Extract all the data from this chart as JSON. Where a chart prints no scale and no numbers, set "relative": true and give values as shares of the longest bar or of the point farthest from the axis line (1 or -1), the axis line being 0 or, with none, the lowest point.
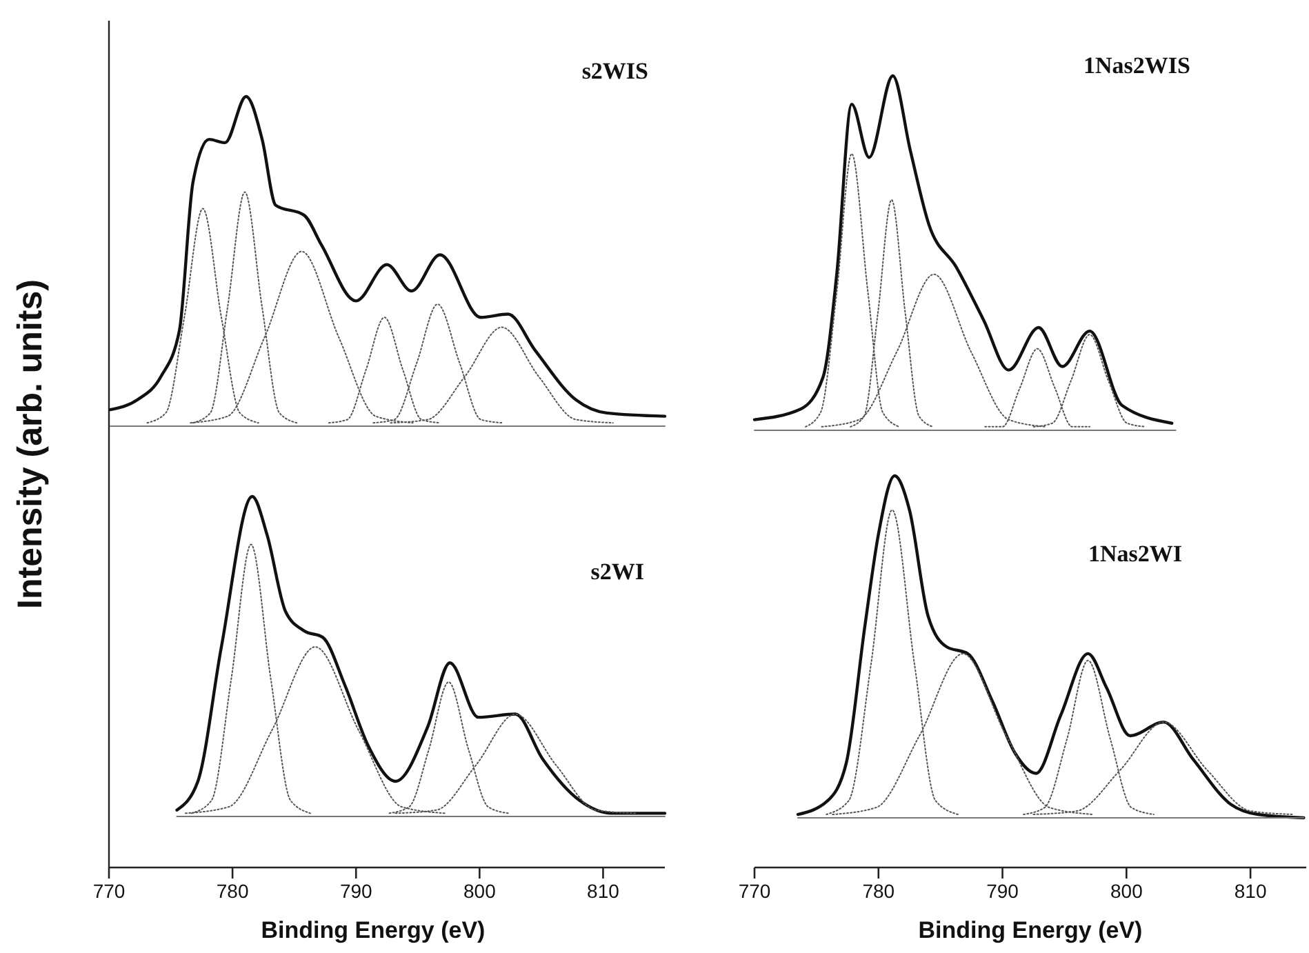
{
  "chart_data": [
    {
      "type": "line",
      "title": "s2WIS",
      "ylabel": "Intensity (arb. units)",
      "relative": true,
      "xlim": [
        770,
        815
      ],
      "tick_labels": false,
      "series": [
        {
          "color": "#111111",
          "line_style": "solid",
          "x": [
            770.1,
            772.3,
            774.2,
            775.7,
            776.8,
            778.1,
            779.4,
            781.1,
            782.4,
            783.5,
            785.8,
            787.2,
            790.0,
            792.5,
            794.5,
            796.8,
            800.1,
            802.3,
            804.5,
            807.8,
            810.3,
            815
          ],
          "values": [
            0.05,
            0.08,
            0.15,
            0.29,
            0.74,
            0.87,
            0.86,
            1.0,
            0.87,
            0.67,
            0.64,
            0.55,
            0.38,
            0.49,
            0.41,
            0.52,
            0.33,
            0.34,
            0.23,
            0.08,
            0.04,
            0.03
          ]
        },
        {
          "color": "#555555",
          "line_style": "dotted",
          "x": [
            773.1,
            774.6,
            776.1,
            777.6,
            779.1,
            780.6,
            782.1
          ],
          "values": [
            0.01,
            0.04,
            0.33,
            0.66,
            0.33,
            0.04,
            0.01
          ]
        },
        {
          "color": "#555555",
          "line_style": "dotted",
          "x": [
            776.8,
            778.2,
            779.6,
            781.0,
            782.4,
            783.8,
            785.2
          ],
          "values": [
            0.01,
            0.04,
            0.36,
            0.71,
            0.36,
            0.04,
            0.01
          ]
        },
        {
          "color": "#555555",
          "line_style": "dotted",
          "x": [
            776.6,
            779.6,
            782.6,
            785.6,
            788.6,
            791.6,
            794.6
          ],
          "values": [
            0.01,
            0.03,
            0.27,
            0.53,
            0.27,
            0.03,
            0.01
          ]
        },
        {
          "color": "#555555",
          "line_style": "dotted",
          "x": [
            787.8,
            789.3,
            790.8,
            792.3,
            793.8,
            795.3,
            796.8
          ],
          "values": [
            0.01,
            0.02,
            0.17,
            0.33,
            0.17,
            0.02,
            0.01
          ]
        },
        {
          "color": "#555555",
          "line_style": "dotted",
          "x": [
            791.4,
            793.1,
            794.9,
            796.6,
            798.4,
            800.1,
            801.9
          ],
          "values": [
            0.01,
            0.02,
            0.19,
            0.37,
            0.19,
            0.02,
            0.01
          ]
        },
        {
          "color": "#555555",
          "line_style": "dotted",
          "x": [
            792.8,
            795.8,
            798.8,
            801.8,
            804.8,
            807.8,
            810.8
          ],
          "values": [
            0.01,
            0.02,
            0.15,
            0.3,
            0.15,
            0.02,
            0.01
          ]
        },
        {
          "color": "#777777",
          "line_style": "solid",
          "x": [
            770.1,
            815
          ],
          "values": [
            0,
            0
          ]
        }
      ]
    },
    {
      "type": "line",
      "title": "1Nas2WIS",
      "relative": true,
      "xlim": [
        770,
        814.5
      ],
      "tick_labels": false,
      "series": [
        {
          "color": "#111111",
          "line_style": "solid",
          "x": [
            770.0,
            773.7,
            775.5,
            776.6,
            777.8,
            779.2,
            781.1,
            782.5,
            784.0,
            786.2,
            788.4,
            790.4,
            792.8,
            794.7,
            796.9,
            799.5,
            803.5
          ],
          "values": [
            0.03,
            0.06,
            0.15,
            0.44,
            0.92,
            0.77,
            1.0,
            0.79,
            0.58,
            0.46,
            0.31,
            0.17,
            0.29,
            0.18,
            0.28,
            0.07,
            0.02
          ]
        },
        {
          "color": "#555555",
          "line_style": "dotted",
          "x": [
            774.1,
            775.3,
            776.6,
            777.8,
            779.1,
            780.3,
            781.6
          ],
          "values": [
            0.01,
            0.05,
            0.39,
            0.78,
            0.39,
            0.05,
            0.01
          ]
        },
        {
          "color": "#555555",
          "line_style": "dotted",
          "x": [
            777.7,
            778.8,
            779.9,
            781.0,
            782.1,
            783.2,
            784.3
          ],
          "values": [
            0.01,
            0.04,
            0.33,
            0.65,
            0.33,
            0.04,
            0.01
          ]
        },
        {
          "color": "#555555",
          "line_style": "dotted",
          "x": [
            775.4,
            778.4,
            781.4,
            784.4,
            787.4,
            790.4,
            793.4
          ],
          "values": [
            0.01,
            0.03,
            0.22,
            0.44,
            0.22,
            0.03,
            0.01
          ]
        },
        {
          "color": "#555555",
          "line_style": "dotted",
          "x": [
            788.5,
            789.9,
            791.3,
            792.7,
            794.1,
            795.5,
            796.9
          ],
          "values": [
            0.01,
            0.01,
            0.12,
            0.23,
            0.12,
            0.01,
            0.01
          ]
        },
        {
          "color": "#555555",
          "line_style": "dotted",
          "x": [
            792.4,
            793.9,
            795.4,
            796.9,
            798.4,
            799.9,
            801.4
          ],
          "values": [
            0.01,
            0.02,
            0.14,
            0.27,
            0.14,
            0.02,
            0.01
          ]
        },
        {
          "color": "#777777",
          "line_style": "solid",
          "x": [
            770.0,
            803.8
          ],
          "values": [
            0,
            0
          ]
        }
      ]
    },
    {
      "type": "line",
      "title": "s2WI",
      "xlabel": "Binding Energy (eV)",
      "relative": true,
      "xlim": [
        770,
        815
      ],
      "xticks": [
        770,
        780,
        790,
        800,
        810
      ],
      "tick_labels": "x",
      "series": [
        {
          "color": "#111111",
          "line_style": "solid",
          "x": [
            775.5,
            777.2,
            779.1,
            781.6,
            782.8,
            784.3,
            785.8,
            787.3,
            789.1,
            791.0,
            793.2,
            795.8,
            797.6,
            799.9,
            802.9,
            805.1,
            808.1,
            810.7,
            815
          ],
          "values": [
            0.02,
            0.11,
            0.53,
            1.0,
            0.88,
            0.64,
            0.58,
            0.56,
            0.41,
            0.22,
            0.11,
            0.28,
            0.48,
            0.31,
            0.32,
            0.18,
            0.05,
            0.01,
            0.01
          ]
        },
        {
          "color": "#555555",
          "line_style": "dotted",
          "x": [
            776.7,
            778.3,
            779.9,
            781.5,
            783.1,
            784.7,
            786.3
          ],
          "values": [
            0.01,
            0.05,
            0.43,
            0.85,
            0.43,
            0.05,
            0.01
          ]
        },
        {
          "color": "#555555",
          "line_style": "dotted",
          "x": [
            776.2,
            779.7,
            783.2,
            786.7,
            790.2,
            793.7,
            797.2
          ],
          "values": [
            0.01,
            0.03,
            0.27,
            0.53,
            0.27,
            0.03,
            0.01
          ]
        },
        {
          "color": "#555555",
          "line_style": "dotted",
          "x": [
            792.7,
            794.3,
            795.9,
            797.5,
            799.1,
            800.7,
            802.3
          ],
          "values": [
            0.01,
            0.03,
            0.21,
            0.42,
            0.21,
            0.03,
            0.01
          ]
        },
        {
          "color": "#555555",
          "line_style": "dotted",
          "x": [
            793.2,
            796.5,
            799.7,
            802.9,
            806.2,
            809.4,
            812.7
          ],
          "values": [
            0.01,
            0.02,
            0.16,
            0.32,
            0.16,
            0.02,
            0.01
          ]
        },
        {
          "color": "#777777",
          "line_style": "solid",
          "x": [
            775.5,
            815
          ],
          "values": [
            0,
            0
          ]
        }
      ]
    },
    {
      "type": "line",
      "title": "1Nas2WI",
      "xlabel": "Binding Energy (eV)",
      "relative": true,
      "xlim": [
        770,
        814.5
      ],
      "xticks": [
        770,
        780,
        790,
        800,
        810
      ],
      "tick_labels": "x",
      "series": [
        {
          "color": "#111111",
          "line_style": "solid",
          "x": [
            773.5,
            775.9,
            777.4,
            778.9,
            780.0,
            781.3,
            782.5,
            784.0,
            785.5,
            787.2,
            789.2,
            791.0,
            792.7,
            794.7,
            796.9,
            798.4,
            800.3,
            803.0,
            805.4,
            808.4,
            810.6,
            814.3
          ],
          "values": [
            0.01,
            0.05,
            0.16,
            0.56,
            0.83,
            1.0,
            0.9,
            0.59,
            0.5,
            0.48,
            0.34,
            0.19,
            0.13,
            0.3,
            0.48,
            0.38,
            0.24,
            0.28,
            0.17,
            0.04,
            0.01,
            0.0
          ]
        },
        {
          "color": "#555555",
          "line_style": "dotted",
          "x": [
            775.8,
            777.6,
            779.4,
            781.1,
            782.9,
            784.6,
            786.4
          ],
          "values": [
            0.01,
            0.05,
            0.45,
            0.9,
            0.45,
            0.05,
            0.01
          ]
        },
        {
          "color": "#555555",
          "line_style": "dotted",
          "x": [
            776.3,
            779.8,
            783.3,
            786.8,
            790.3,
            793.8,
            797.3
          ],
          "values": [
            0.01,
            0.03,
            0.24,
            0.48,
            0.24,
            0.03,
            0.01
          ]
        },
        {
          "color": "#555555",
          "line_style": "dotted",
          "x": [
            791.7,
            793.4,
            795.2,
            796.9,
            798.7,
            800.4,
            802.2
          ],
          "values": [
            0.01,
            0.03,
            0.23,
            0.46,
            0.23,
            0.03,
            0.01
          ]
        },
        {
          "color": "#555555",
          "line_style": "dotted",
          "x": [
            792.5,
            796.0,
            799.5,
            803.0,
            806.5,
            810.0,
            813.5
          ],
          "values": [
            0.01,
            0.02,
            0.14,
            0.28,
            0.14,
            0.02,
            0.01
          ]
        },
        {
          "color": "#777777",
          "line_style": "solid",
          "x": [
            773.5,
            814.3
          ],
          "values": [
            0,
            0
          ]
        }
      ]
    }
  ]
}
